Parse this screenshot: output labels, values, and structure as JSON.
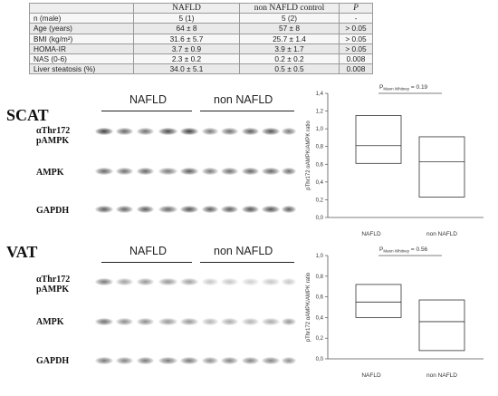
{
  "table": {
    "headers": [
      "",
      "NAFLD",
      "non NAFLD control",
      "P"
    ],
    "rows": [
      [
        "n (male)",
        "5 (1)",
        "5 (2)",
        "-"
      ],
      [
        "Age (years)",
        "64 ± 8",
        "57 ± 8",
        "> 0.05"
      ],
      [
        "BMI (kg/m²)",
        "31.6 ± 5.7",
        "25.7 ± 1.4",
        "> 0.05"
      ],
      [
        "HOMA-IR",
        "3.7 ± 0.9",
        "3.9 ± 1.7",
        "> 0.05"
      ],
      [
        "NAS (0-6)",
        "2.3 ± 0.2",
        "0.2 ± 0.2",
        "0.008"
      ],
      [
        "Liver steatosis (%)",
        "34.0 ± 5.1",
        "0.5 ± 0.5",
        "0.008"
      ]
    ]
  },
  "panels": [
    {
      "tissue": "SCAT",
      "group_labels": [
        "NAFLD",
        "non NAFLD"
      ],
      "blot_labels": [
        "αThr172",
        "pAMPK",
        "AMPK",
        "GAPDH"
      ]
    },
    {
      "tissue": "VAT",
      "group_labels": [
        "NAFLD",
        "non NAFLD"
      ],
      "blot_labels": [
        "αThr172",
        "pAMPK",
        "AMPK",
        "GAPDH"
      ]
    }
  ],
  "chart_data": [
    {
      "type": "box",
      "p_label_main": "P",
      "p_label_sub": "Mann Whitney",
      "p_value_text": " = 0.19",
      "ylabel": "pThr172 αAMPK/AMPK ratio",
      "ylim": [
        0,
        1.4
      ],
      "yticks": [
        "0,0",
        "0,2",
        "0,4",
        "0,6",
        "0,8",
        "1,0",
        "1,2",
        "1,4"
      ],
      "categories": [
        "NAFLD",
        "non NAFLD"
      ],
      "boxes": [
        {
          "q1": 0.61,
          "median": 0.81,
          "q3": 1.15
        },
        {
          "q1": 0.23,
          "median": 0.63,
          "q3": 0.91
        }
      ]
    },
    {
      "type": "box",
      "p_label_main": "P",
      "p_label_sub": "Mann Whitney",
      "p_value_text": " = 0.56",
      "ylabel": "pThr172 αAMPK/AMPK ratio",
      "ylim": [
        0,
        1.0
      ],
      "yticks": [
        "0,0",
        "0,2",
        "0,4",
        "0,6",
        "0,8",
        "1,0"
      ],
      "categories": [
        "NAFLD",
        "non NAFLD"
      ],
      "boxes": [
        {
          "q1": 0.4,
          "median": 0.55,
          "q3": 0.72
        },
        {
          "q1": 0.08,
          "median": 0.36,
          "q3": 0.57
        }
      ]
    }
  ]
}
